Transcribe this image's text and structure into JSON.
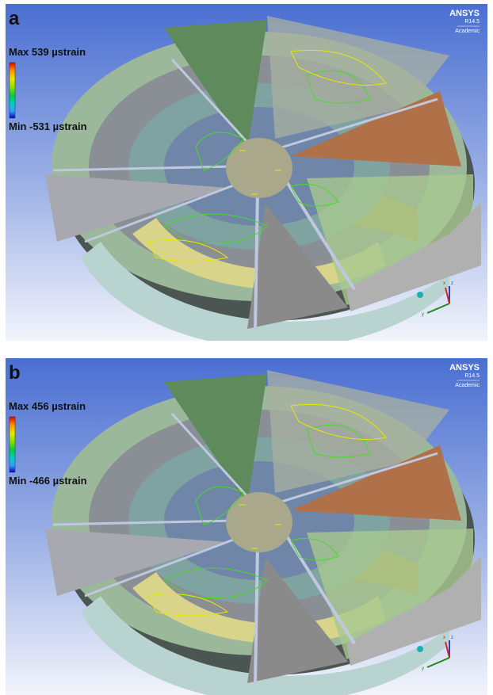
{
  "panels": [
    {
      "label": "a",
      "max": "Max 539 µstrain",
      "min": "Min -531 µstrain",
      "logo": {
        "name": "ANSYS",
        "version": "R14.5",
        "edition": "Academic"
      },
      "axes": {
        "x": "x",
        "y": "y",
        "z": "z"
      }
    },
    {
      "label": "b",
      "max": "Max 456 µstrain",
      "min": "Min -466 µstrain",
      "logo": {
        "name": "ANSYS",
        "version": "R14.5",
        "edition": "Academic"
      },
      "axes": {
        "x": "x",
        "y": "y",
        "z": "z"
      }
    }
  ]
}
